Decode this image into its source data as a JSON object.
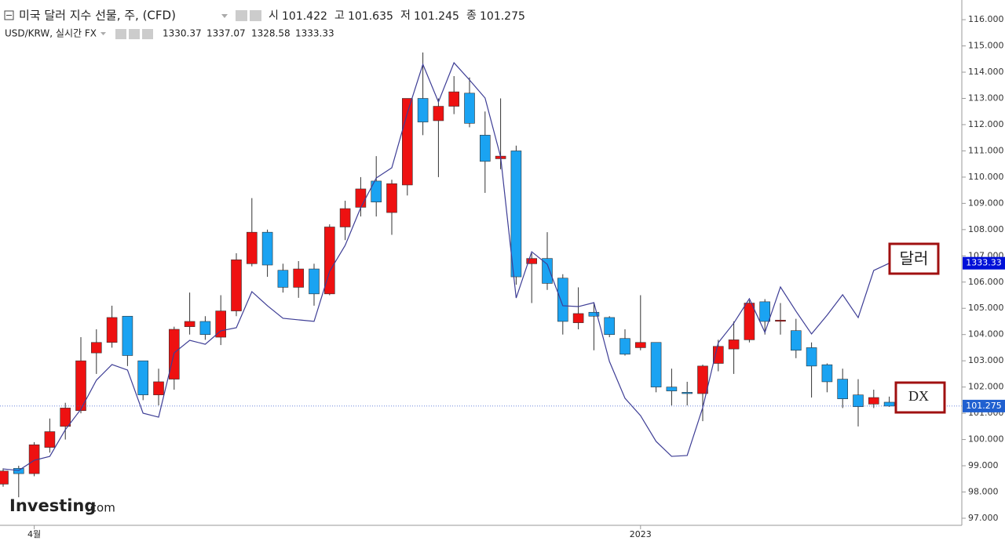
{
  "chart_data": {
    "type": "candlestick",
    "title": "미국 달러 지수 선물, 주, (CFD)",
    "ohlc_header_labels": [
      "시",
      "고",
      "저",
      "종"
    ],
    "subtitle": "USD/KRW, 실시간 FX",
    "categories": [
      null,
      null,
      "4월",
      null,
      null,
      null,
      null,
      null,
      null,
      null,
      null,
      null,
      null,
      null,
      null,
      null,
      null,
      null,
      null,
      null,
      null,
      null,
      null,
      null,
      null,
      null,
      null,
      null,
      null,
      null,
      null,
      null,
      null,
      null,
      null,
      null,
      null,
      null,
      null,
      null,
      null,
      "2023",
      null,
      null,
      null,
      null,
      null,
      null,
      null,
      null,
      null,
      null,
      null,
      null,
      null,
      null,
      null,
      null
    ],
    "open": [
      98.3,
      98.9,
      98.7,
      99.7,
      100.5,
      101.1,
      103.3,
      103.7,
      104.7,
      103.0,
      101.7,
      102.3,
      104.3,
      104.5,
      103.9,
      104.9,
      106.7,
      107.9,
      106.45,
      105.8,
      106.5,
      105.55,
      108.1,
      108.85,
      109.85,
      108.65,
      109.7,
      113.0,
      112.15,
      112.7,
      113.2,
      111.6,
      110.7,
      111.0,
      106.7,
      106.9,
      106.15,
      104.45,
      104.85,
      104.65,
      103.85,
      103.5,
      103.7,
      102.0,
      101.8,
      101.75,
      102.9,
      103.45,
      103.8,
      105.25,
      104.55,
      104.15,
      103.5,
      102.85,
      102.3,
      101.7,
      101.35,
      101.422
    ],
    "high": [
      98.9,
      99.0,
      99.9,
      100.8,
      101.4,
      103.9,
      104.2,
      105.1,
      104.7,
      103.0,
      102.7,
      104.3,
      105.6,
      104.7,
      105.5,
      107.1,
      109.2,
      108.0,
      106.7,
      106.8,
      106.7,
      108.2,
      109.1,
      110.0,
      110.8,
      109.9,
      113.0,
      114.75,
      113.0,
      113.85,
      113.8,
      112.5,
      113.0,
      111.2,
      107.1,
      107.9,
      106.3,
      105.8,
      105.2,
      104.7,
      104.2,
      105.5,
      103.7,
      102.7,
      102.2,
      102.85,
      103.8,
      104.5,
      105.3,
      105.35,
      105.2,
      104.6,
      103.7,
      102.9,
      102.7,
      102.3,
      101.9,
      101.635
    ],
    "low": [
      98.2,
      97.8,
      98.6,
      99.5,
      100.0,
      101.0,
      102.5,
      103.5,
      102.8,
      101.5,
      101.3,
      101.9,
      104.0,
      103.8,
      103.6,
      104.7,
      106.6,
      106.2,
      105.6,
      105.4,
      105.1,
      105.5,
      107.6,
      108.5,
      108.5,
      107.8,
      109.3,
      111.6,
      110.0,
      112.4,
      111.9,
      109.4,
      110.3,
      105.9,
      105.2,
      105.7,
      104.0,
      104.2,
      103.4,
      103.9,
      103.2,
      103.4,
      101.8,
      101.3,
      101.3,
      100.7,
      102.6,
      102.5,
      103.7,
      104.0,
      104.0,
      103.1,
      101.6,
      101.8,
      101.2,
      100.5,
      101.2,
      101.245
    ],
    "close": [
      98.8,
      98.7,
      99.8,
      100.3,
      101.2,
      103.0,
      103.7,
      104.65,
      103.2,
      101.7,
      102.2,
      104.2,
      104.5,
      104.0,
      104.9,
      106.85,
      107.9,
      106.65,
      105.8,
      106.5,
      105.55,
      108.1,
      108.8,
      109.55,
      109.05,
      109.75,
      113.0,
      112.1,
      112.7,
      113.25,
      112.05,
      110.6,
      110.8,
      106.2,
      106.9,
      105.95,
      104.5,
      104.8,
      104.7,
      104.0,
      103.25,
      103.7,
      102.0,
      101.85,
      101.75,
      102.8,
      103.55,
      103.8,
      105.2,
      104.5,
      104.55,
      103.4,
      102.8,
      102.2,
      101.55,
      101.25,
      101.6,
      101.275
    ],
    "up_color": "#ee1111",
    "down_color": "#1aa3f2",
    "series": [
      {
        "name": "USD/KRW",
        "color": "#3d3d95",
        "axis": "y2",
        "open_high_low": [
          1330.37,
          1337.07,
          1328.58
        ],
        "values": [
          1213.7,
          1212.8,
          1218.7,
          1221.0,
          1236.5,
          1248.4,
          1265.3,
          1274.4,
          1271.2,
          1246.1,
          1243.8,
          1281.2,
          1288.5,
          1286.2,
          1294.0,
          1295.8,
          1316.8,
          1308.6,
          1301.3,
          1300.4,
          1299.5,
          1328.6,
          1343.7,
          1365.6,
          1382.9,
          1388.8,
          1420.7,
          1449.0,
          1427.1,
          1449.9,
          1439.9,
          1429.4,
          1395.2,
          1313.1,
          1340.0,
          1332.7,
          1308.6,
          1308.1,
          1310.4,
          1276.2,
          1254.8,
          1244.7,
          1229.7,
          1221.0,
          1221.5,
          1249.3,
          1287.1,
          1298.5,
          1312.7,
          1293.1,
          1319.5,
          1305.4,
          1292.2,
          1303.1,
          1315.0,
          1301.7,
          1329.1,
          1333.33
        ]
      }
    ],
    "ylim": [
      96.73,
      116.75
    ],
    "yticks": [
      {
        "value": 97,
        "label": "97.000"
      },
      {
        "value": 98,
        "label": "98.000"
      },
      {
        "value": 99,
        "label": "99.000"
      },
      {
        "value": 100,
        "label": "100.000"
      },
      {
        "value": 101,
        "label": "101.000"
      },
      {
        "value": 102,
        "label": "102.000"
      },
      {
        "value": 103,
        "label": "103.000"
      },
      {
        "value": 104,
        "label": "104.000"
      },
      {
        "value": 105,
        "label": "105.000"
      },
      {
        "value": 106,
        "label": "106.000"
      },
      {
        "value": 107,
        "label": "107.000"
      },
      {
        "value": 108,
        "label": "108.000"
      },
      {
        "value": 109,
        "label": "109.000"
      },
      {
        "value": 110,
        "label": "110.000"
      },
      {
        "value": 111,
        "label": "111.000"
      },
      {
        "value": 112,
        "label": "112.000"
      },
      {
        "value": 113,
        "label": "113.000"
      },
      {
        "value": 114,
        "label": "114.000"
      },
      {
        "value": 115,
        "label": "115.000"
      },
      {
        "value": 116,
        "label": "116.000"
      }
    ],
    "y2lim": [
      1180.9,
      1486.4
    ],
    "annotations": [
      "달러",
      "DX"
    ],
    "brand": [
      "Investing",
      ".com"
    ]
  }
}
